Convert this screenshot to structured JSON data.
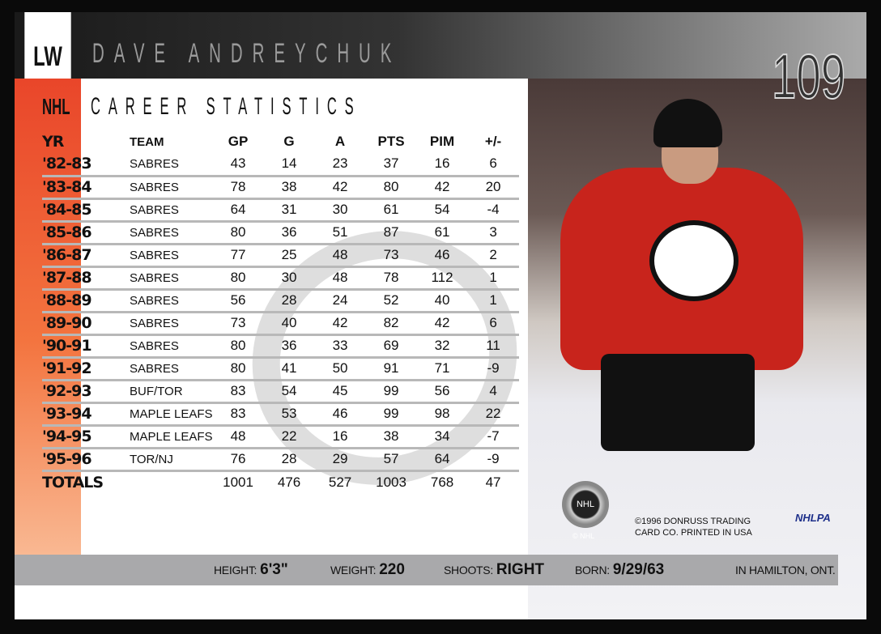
{
  "header": {
    "position": "LW",
    "player_name": "DAVE ANDREYCHUK",
    "card_number": "109"
  },
  "section": {
    "league": "NHL",
    "title": "CAREER STATISTICS"
  },
  "table": {
    "columns": [
      "YR",
      "TEAM",
      "GP",
      "G",
      "A",
      "PTS",
      "PIM",
      "+/-"
    ],
    "rows": [
      [
        "'82-83",
        "SABRES",
        "43",
        "14",
        "23",
        "37",
        "16",
        "6"
      ],
      [
        "'83-84",
        "SABRES",
        "78",
        "38",
        "42",
        "80",
        "42",
        "20"
      ],
      [
        "'84-85",
        "SABRES",
        "64",
        "31",
        "30",
        "61",
        "54",
        "-4"
      ],
      [
        "'85-86",
        "SABRES",
        "80",
        "36",
        "51",
        "87",
        "61",
        "3"
      ],
      [
        "'86-87",
        "SABRES",
        "77",
        "25",
        "48",
        "73",
        "46",
        "2"
      ],
      [
        "'87-88",
        "SABRES",
        "80",
        "30",
        "48",
        "78",
        "112",
        "1"
      ],
      [
        "'88-89",
        "SABRES",
        "56",
        "28",
        "24",
        "52",
        "40",
        "1"
      ],
      [
        "'89-90",
        "SABRES",
        "73",
        "40",
        "42",
        "82",
        "42",
        "6"
      ],
      [
        "'90-91",
        "SABRES",
        "80",
        "36",
        "33",
        "69",
        "32",
        "11"
      ],
      [
        "'91-92",
        "SABRES",
        "80",
        "41",
        "50",
        "91",
        "71",
        "-9"
      ],
      [
        "'92-93",
        "BUF/TOR",
        "83",
        "54",
        "45",
        "99",
        "56",
        "4"
      ],
      [
        "'93-94",
        "MAPLE LEAFS",
        "83",
        "53",
        "46",
        "99",
        "98",
        "22"
      ],
      [
        "'94-95",
        "MAPLE LEAFS",
        "48",
        "22",
        "16",
        "38",
        "34",
        "-7"
      ],
      [
        "'95-96",
        "TOR/NJ",
        "76",
        "28",
        "29",
        "57",
        "64",
        "-9"
      ]
    ],
    "totals": [
      "TOTALS",
      "",
      "1001",
      "476",
      "527",
      "1003",
      "768",
      "47"
    ]
  },
  "bio": {
    "height_label": "HEIGHT:",
    "height": "6'3\"",
    "weight_label": "WEIGHT:",
    "weight": "220",
    "shoots_label": "SHOOTS:",
    "shoots": "RIGHT",
    "born_label": "BORN:",
    "born": "9/29/63",
    "birthplace": "IN HAMILTON, ONT."
  },
  "photo": {
    "copyright_line1": "©1996 DONRUSS TRADING",
    "copyright_line2": "CARD CO. PRINTED IN USA",
    "nhlpa": "NHLPA",
    "nhl_badge": "NHL",
    "nhl_copyright": "© NHL"
  },
  "colors": {
    "accent_orange": "#e9462a",
    "jersey_red": "#c8241c",
    "bar_gray": "#a9a9ab"
  }
}
